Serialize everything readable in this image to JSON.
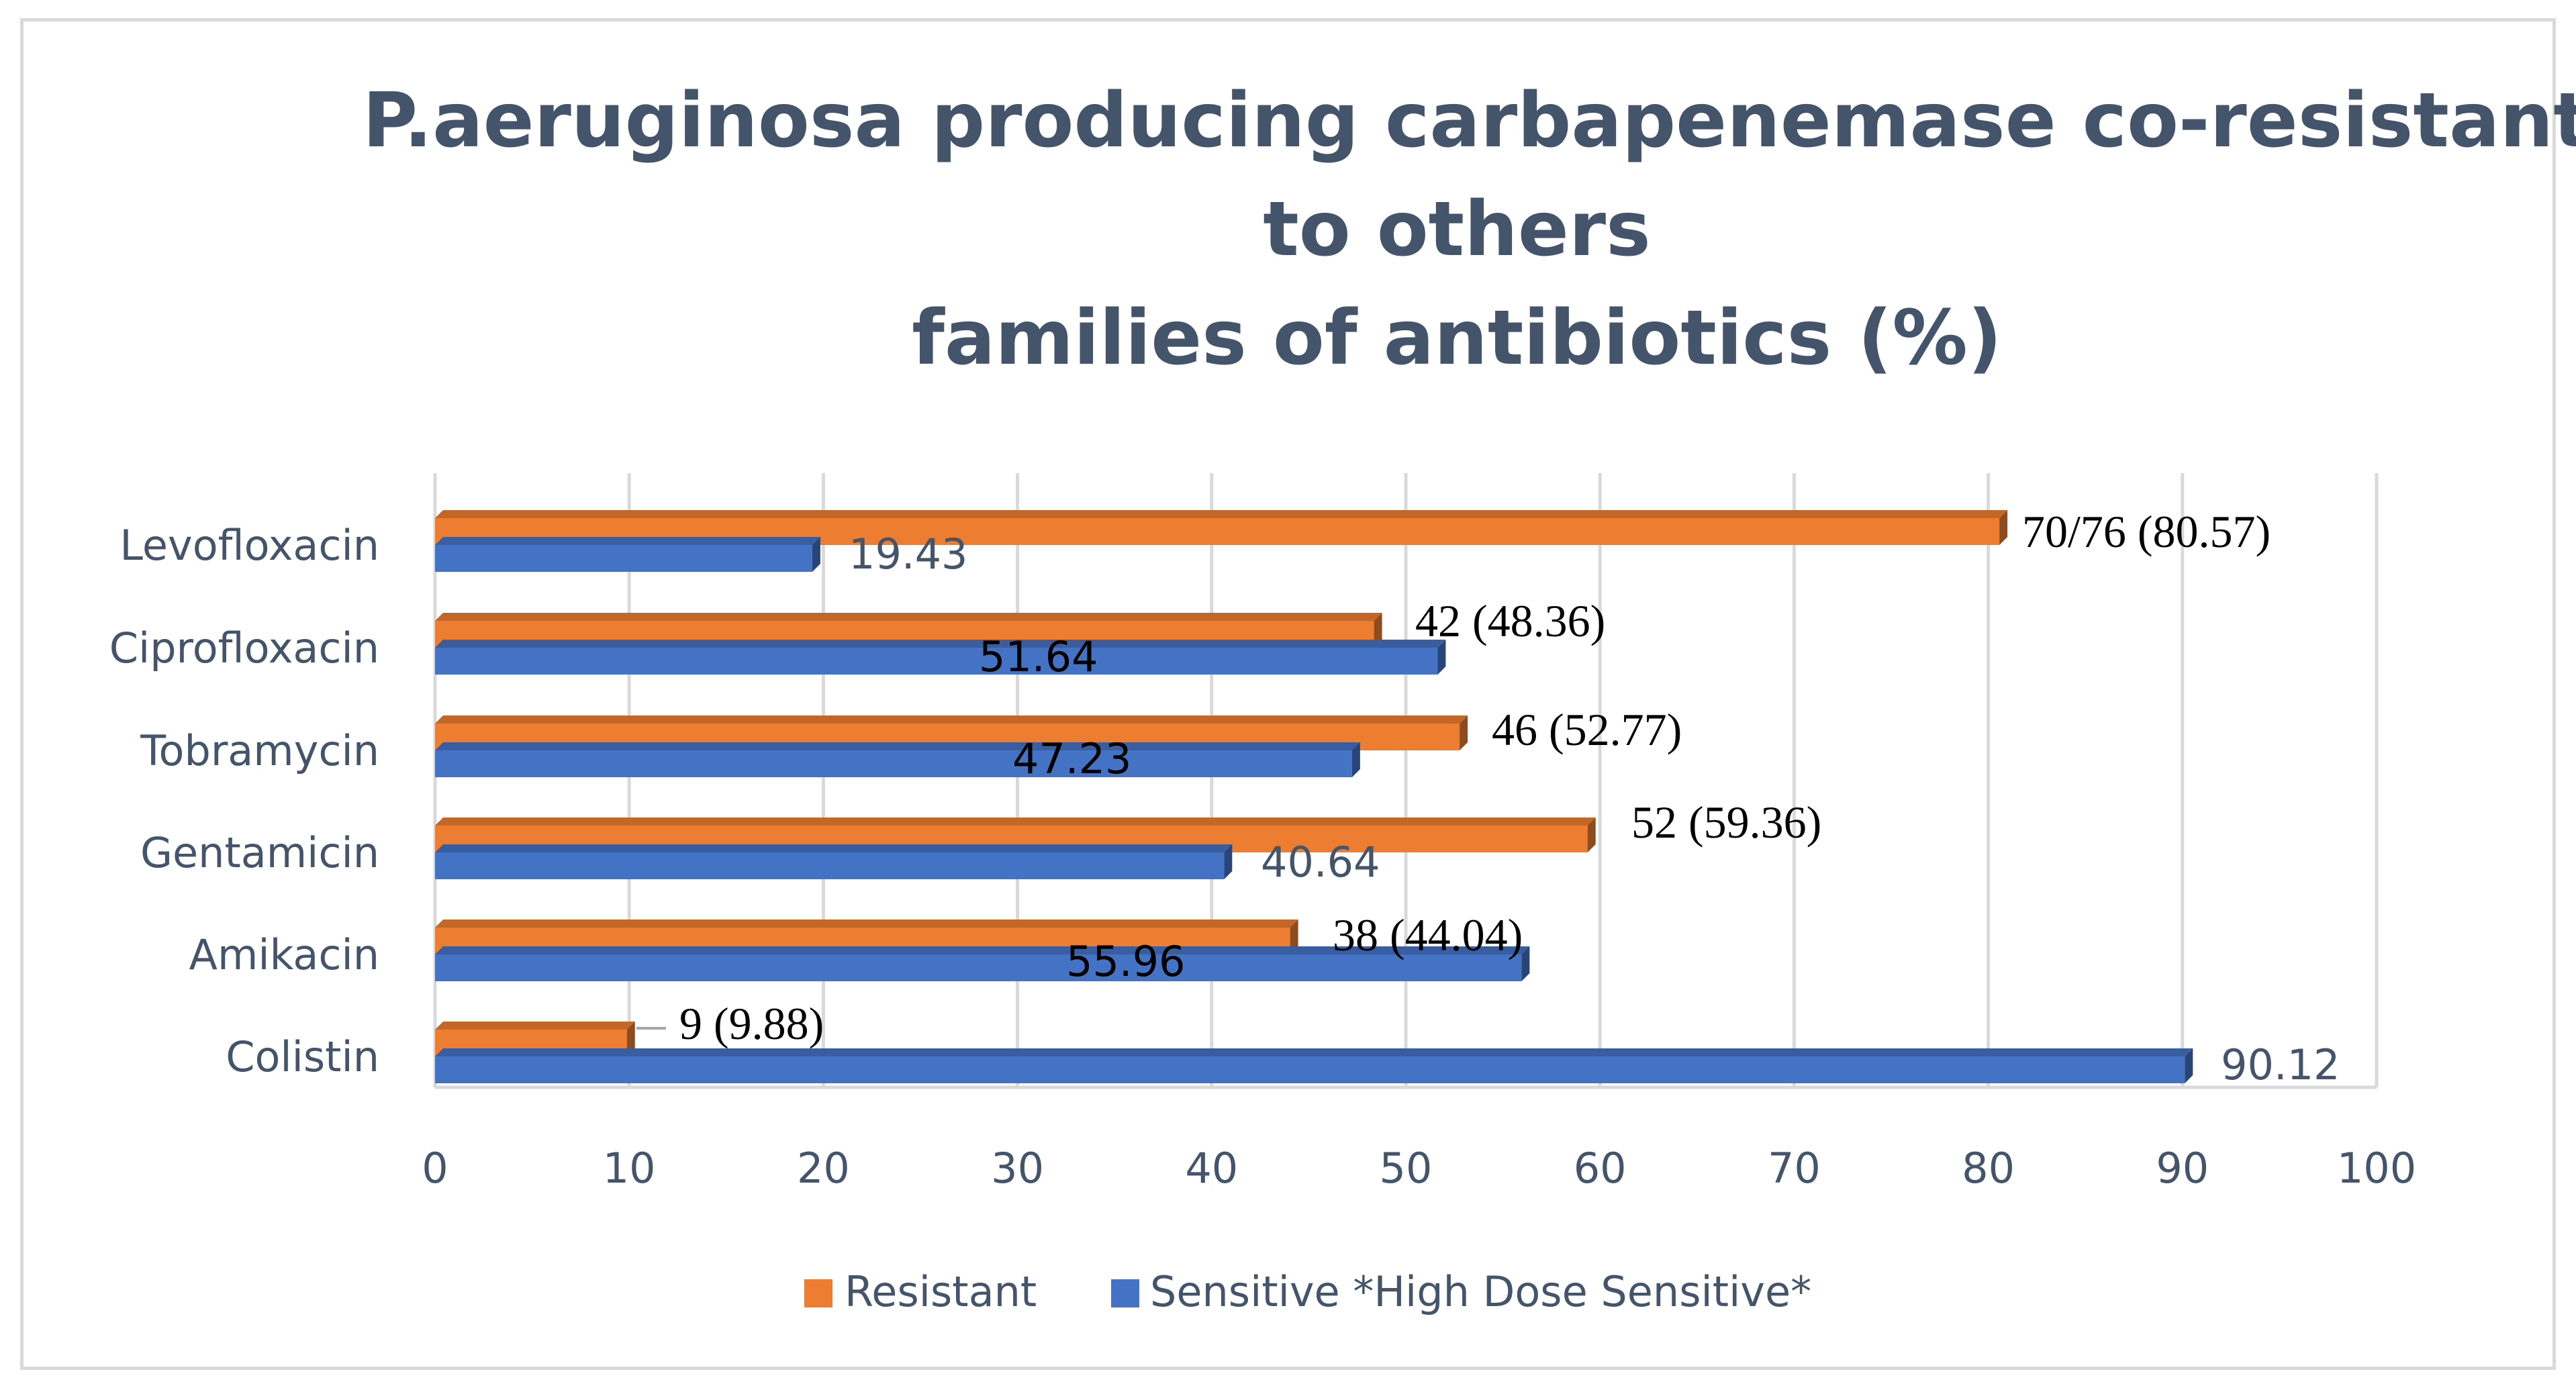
{
  "chart_data": {
    "type": "bar",
    "orientation": "horizontal",
    "title_lines": [
      "P.aeruginosa producing carbapenemase co-resistant",
      "to others",
      "families of antibiotics (%)"
    ],
    "categories": [
      "Levofloxacin",
      "Ciprofloxacin",
      "Tobramycin",
      "Gentamicin",
      "Amikacin",
      "Colistin"
    ],
    "series": [
      {
        "name": "Resistant",
        "color": "#ed7d31",
        "values": [
          80.57,
          48.36,
          52.77,
          59.36,
          44.04,
          9.88
        ],
        "labels": [
          "70/76 (80.57)",
          "42 (48.36)",
          "46 (52.77)",
          "52 (59.36)",
          "38 (44.04)",
          "9 (9.88)"
        ]
      },
      {
        "name": "Sensitive *High Dose Sensitive*",
        "color": "#4472c4",
        "values": [
          19.43,
          51.64,
          47.23,
          40.64,
          55.96,
          90.12
        ],
        "labels": [
          "19.43",
          "51.64",
          "47.23",
          "40.64",
          "55.96",
          "90.12"
        ]
      }
    ],
    "x_ticks": [
      "0",
      "10",
      "20",
      "30",
      "40",
      "50",
      "60",
      "70",
      "80",
      "90",
      "100"
    ],
    "xlim": [
      0,
      100
    ],
    "grid": true,
    "legend_position": "bottom"
  }
}
